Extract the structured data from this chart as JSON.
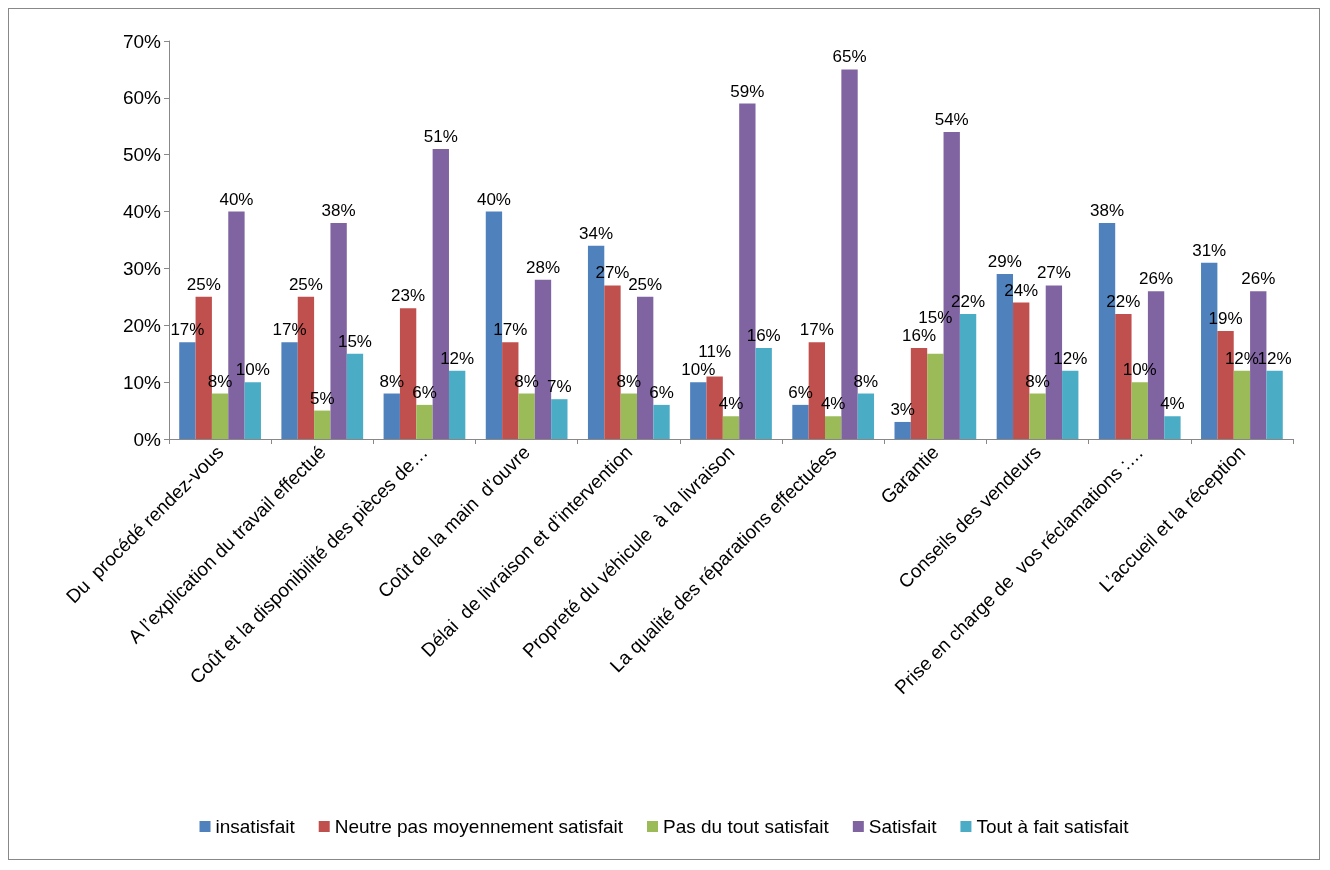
{
  "chart_data": {
    "type": "bar",
    "categories": [
      "Du  procédé rendez-vous",
      "A l’explication du travail effectué",
      "Coût et la disponibilité des pièces de…",
      "Coût de la main  d’ouvre",
      "Délai  de livraison et d’intervention",
      "Propreté du véhicule  à la livraison",
      "La qualité des réparations effectuées",
      "Garantie",
      "Conseils des vendeurs",
      "Prise en charge de  vos réclamations :…",
      "L’accueil et la réception"
    ],
    "series": [
      {
        "name": "insatisfait",
        "color": "#4f81bd",
        "values": [
          17,
          17,
          8,
          40,
          34,
          10,
          6,
          3,
          29,
          38,
          31
        ],
        "value_labels": [
          "17%",
          "17%",
          "8%",
          "40%",
          "34%",
          "10%",
          "6%",
          "3%",
          "29%",
          "38%",
          "31%"
        ]
      },
      {
        "name": "Neutre pas moyennement satisfait",
        "color": "#c0504d",
        "values": [
          25,
          25,
          23,
          17,
          27,
          11,
          17,
          16,
          24,
          22,
          19
        ],
        "value_labels": [
          "25%",
          "25%",
          "23%",
          "17%",
          "27%",
          "11%",
          "17%",
          "16%",
          "24%",
          "22%",
          "19%"
        ]
      },
      {
        "name": "Pas du tout satisfait",
        "color": "#9bbb59",
        "values": [
          8,
          5,
          6,
          8,
          8,
          4,
          4,
          15,
          8,
          10,
          12
        ],
        "value_labels": [
          "8%",
          "5%",
          "6%",
          "8%",
          "8%",
          "4%",
          "4%",
          "15%",
          "8%",
          "10%",
          "12%"
        ]
      },
      {
        "name": "Satisfait",
        "color": "#8064a2",
        "values": [
          40,
          38,
          51,
          28,
          25,
          59,
          65,
          54,
          27,
          26,
          26
        ],
        "value_labels": [
          "40%",
          "38%",
          "51%",
          "28%",
          "25%",
          "59%",
          "65%",
          "54%",
          "27%",
          "26%",
          "26%"
        ]
      },
      {
        "name": "Tout à fait satisfait",
        "color": "#4bacc6",
        "values": [
          10,
          15,
          12,
          7,
          6,
          16,
          8,
          22,
          12,
          4,
          12
        ],
        "value_labels": [
          "10%",
          "15%",
          "12%",
          "7%",
          "6%",
          "16%",
          "8%",
          "22%",
          "12%",
          "4%",
          "12%"
        ]
      }
    ],
    "ylim": [
      0,
      70
    ],
    "yticks": [
      {
        "value": 0,
        "label": "0%"
      },
      {
        "value": 10,
        "label": "10%"
      },
      {
        "value": 20,
        "label": "20%"
      },
      {
        "value": 30,
        "label": "30%"
      },
      {
        "value": 40,
        "label": "40%"
      },
      {
        "value": 50,
        "label": "50%"
      },
      {
        "value": 60,
        "label": "60%"
      },
      {
        "value": 70,
        "label": "70%"
      }
    ],
    "grid": false,
    "legend": "bottom"
  }
}
